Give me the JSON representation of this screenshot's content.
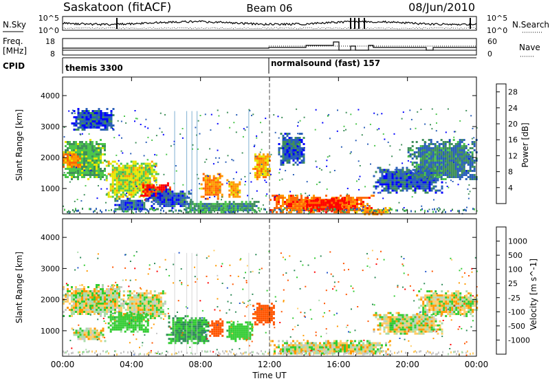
{
  "header": {
    "station": "Saskatoon (fitACF)",
    "beam": "Beam 06",
    "date": "08/Jun/2010"
  },
  "noise_panel": {
    "left_label": "N.Sky",
    "right_label": "N.Search",
    "left_ticks": [
      "10^5",
      "10^0"
    ],
    "right_ticks": [
      "10^5",
      "10^0"
    ]
  },
  "freq_panel": {
    "left_label_1": "Freq.",
    "left_label_2": "[MHz]",
    "right_label": "Nave",
    "left_ticks": [
      "18",
      "8"
    ],
    "right_ticks": [
      "60",
      "0"
    ]
  },
  "cpid_panel": {
    "label": "CPID",
    "modes": [
      {
        "name": "themis 3300",
        "start_hour": 0
      },
      {
        "name": "normalsound (fast) 157",
        "start_hour": 12
      }
    ]
  },
  "chart_data": [
    {
      "type": "heatmap",
      "title": "Power",
      "ylabel": "Slant Range [km]",
      "xlabel": "Time UT",
      "xlim": [
        0,
        24
      ],
      "ylim": [
        180,
        4600
      ],
      "x_tick_labels": [
        "00:00",
        "04:00",
        "08:00",
        "12:00",
        "16:00",
        "20:00",
        "00:00"
      ],
      "y_tick_labels": [
        "1000",
        "2000",
        "3000",
        "4000"
      ],
      "colorbar_label": "Power [dB]",
      "colorbar_ticks": [
        "4",
        "8",
        "12",
        "16",
        "20",
        "24",
        "28"
      ],
      "colorbar_range": [
        0,
        30
      ],
      "colors": [
        "#0000ff",
        "#2a5fb8",
        "#3f8f5a",
        "#4cc64c",
        "#e6e600",
        "#ff9900",
        "#ff6600",
        "#ff0000"
      ],
      "regions": [
        {
          "x": [
            0.0,
            2.5
          ],
          "y": [
            1300,
            2600
          ],
          "value": 12
        },
        {
          "x": [
            0.0,
            1.0
          ],
          "y": [
            1700,
            2200
          ],
          "value": 22
        },
        {
          "x": [
            2.5,
            5.5
          ],
          "y": [
            700,
            1900
          ],
          "value": 16
        },
        {
          "x": [
            4.5,
            6.2
          ],
          "y": [
            650,
            1200
          ],
          "value": 28
        },
        {
          "x": [
            3.0,
            5.0
          ],
          "y": [
            300,
            700
          ],
          "value": 6
        },
        {
          "x": [
            5.0,
            7.5
          ],
          "y": [
            400,
            1000
          ],
          "value": 5
        },
        {
          "x": [
            8.0,
            9.3
          ],
          "y": [
            700,
            1500
          ],
          "value": 22
        },
        {
          "x": [
            9.5,
            10.3
          ],
          "y": [
            700,
            1300
          ],
          "value": 20
        },
        {
          "x": [
            7.0,
            11.5
          ],
          "y": [
            250,
            600
          ],
          "value": 10
        },
        {
          "x": [
            11.0,
            12.0
          ],
          "y": [
            1300,
            2200
          ],
          "value": 20
        },
        {
          "x": [
            12.5,
            14.0
          ],
          "y": [
            1800,
            2800
          ],
          "value": 6
        },
        {
          "x": [
            12.0,
            18.0
          ],
          "y": [
            250,
            800
          ],
          "value": 24
        },
        {
          "x": [
            14.0,
            16.5
          ],
          "y": [
            250,
            700
          ],
          "value": 28
        },
        {
          "x": [
            17.0,
            19.0
          ],
          "y": [
            200,
            400
          ],
          "value": 20
        },
        {
          "x": [
            18.0,
            22.0
          ],
          "y": [
            900,
            1700
          ],
          "value": 6
        },
        {
          "x": [
            20.0,
            24.0
          ],
          "y": [
            1300,
            2600
          ],
          "value": 8
        },
        {
          "x": [
            0.5,
            3.0
          ],
          "y": [
            2900,
            3600
          ],
          "value": 5
        }
      ]
    },
    {
      "type": "heatmap",
      "title": "Velocity",
      "ylabel": "Slant Range [km]",
      "xlabel": "Time UT",
      "xlim": [
        0,
        24
      ],
      "ylim": [
        180,
        4600
      ],
      "x_tick_labels": [
        "00:00",
        "04:00",
        "08:00",
        "12:00",
        "16:00",
        "20:00",
        "00:00"
      ],
      "y_tick_labels": [
        "1000",
        "2000",
        "3000",
        "4000"
      ],
      "colorbar_label": "Velocity [m s^-1]",
      "colorbar_ticks": [
        "1000",
        "500",
        "100",
        "25",
        "-25",
        "-100",
        "-500",
        "-1000"
      ],
      "colorbar_range": [
        -1000,
        1000
      ],
      "colors": [
        "#2255cc",
        "#2e8b57",
        "#33cc33",
        "#aaddaa",
        "#c8c8c8",
        "#ffcc66",
        "#ff9900",
        "#ff5500",
        "#ff0000"
      ],
      "regions": [
        {
          "x": [
            0.0,
            3.5
          ],
          "y": [
            1500,
            2500
          ],
          "value": 0
        },
        {
          "x": [
            3.5,
            6.0
          ],
          "y": [
            1400,
            2300
          ],
          "value": 0
        },
        {
          "x": [
            0.5,
            2.5
          ],
          "y": [
            700,
            1100
          ],
          "value": 0
        },
        {
          "x": [
            2.5,
            5.0
          ],
          "y": [
            1000,
            1600
          ],
          "value": 150
        },
        {
          "x": [
            6.0,
            8.5
          ],
          "y": [
            600,
            1500
          ],
          "value": 300
        },
        {
          "x": [
            8.5,
            9.3
          ],
          "y": [
            800,
            1400
          ],
          "value": -400
        },
        {
          "x": [
            9.5,
            11.0
          ],
          "y": [
            700,
            1300
          ],
          "value": 200
        },
        {
          "x": [
            11.0,
            12.2
          ],
          "y": [
            1200,
            1900
          ],
          "value": -500
        },
        {
          "x": [
            12.0,
            19.0
          ],
          "y": [
            250,
            700
          ],
          "value": 0
        },
        {
          "x": [
            18.0,
            22.0
          ],
          "y": [
            900,
            1600
          ],
          "value": 0
        },
        {
          "x": [
            20.5,
            24.0
          ],
          "y": [
            1500,
            2300
          ],
          "value": 0
        }
      ]
    }
  ]
}
